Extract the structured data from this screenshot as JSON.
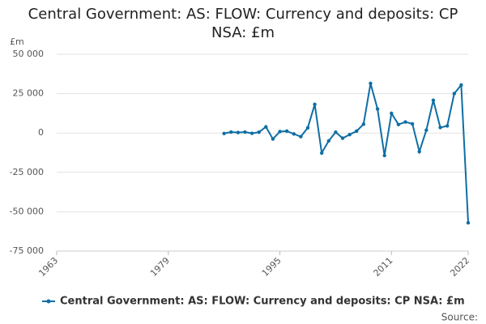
{
  "chart_data": {
    "type": "line",
    "title": "Central Government: AS: FLOW: Currency and deposits: CP NSA: £m",
    "y_label": "£m",
    "source": "Source:",
    "x": [
      1987,
      1988,
      1989,
      1990,
      1991,
      1992,
      1993,
      1994,
      1995,
      1996,
      1997,
      1998,
      1999,
      2000,
      2001,
      2002,
      2003,
      2004,
      2005,
      2006,
      2007,
      2008,
      2009,
      2010,
      2011,
      2012,
      2013,
      2014,
      2015,
      2016,
      2017,
      2018,
      2019,
      2020,
      2021,
      2022
    ],
    "series": [
      {
        "name": "Central Government: AS: FLOW: Currency and deposits: CP NSA: £m",
        "color": "#0e6ea5",
        "values": [
          -300,
          600,
          300,
          600,
          -200,
          500,
          3900,
          -3800,
          900,
          1200,
          -600,
          -2300,
          3300,
          18200,
          -12700,
          -5000,
          500,
          -3300,
          -1000,
          1200,
          5600,
          31500,
          15300,
          -14300,
          12500,
          5400,
          7000,
          5800,
          -11800,
          1800,
          20800,
          3500,
          4500,
          25000,
          30500,
          -57000
        ]
      }
    ],
    "xlim": [
      1963,
      2022
    ],
    "xticks": [
      1963,
      1979,
      1995,
      2011,
      2022
    ],
    "ylim": [
      -75000,
      50000
    ],
    "yticks": [
      {
        "value": 50000,
        "label": "50 000"
      },
      {
        "value": 25000,
        "label": "25 000"
      },
      0,
      {
        "value": -25000,
        "label": "-25 000"
      },
      {
        "value": -50000,
        "label": "-50 000"
      },
      {
        "value": -75000,
        "label": "-75 000"
      }
    ],
    "grid": true
  }
}
